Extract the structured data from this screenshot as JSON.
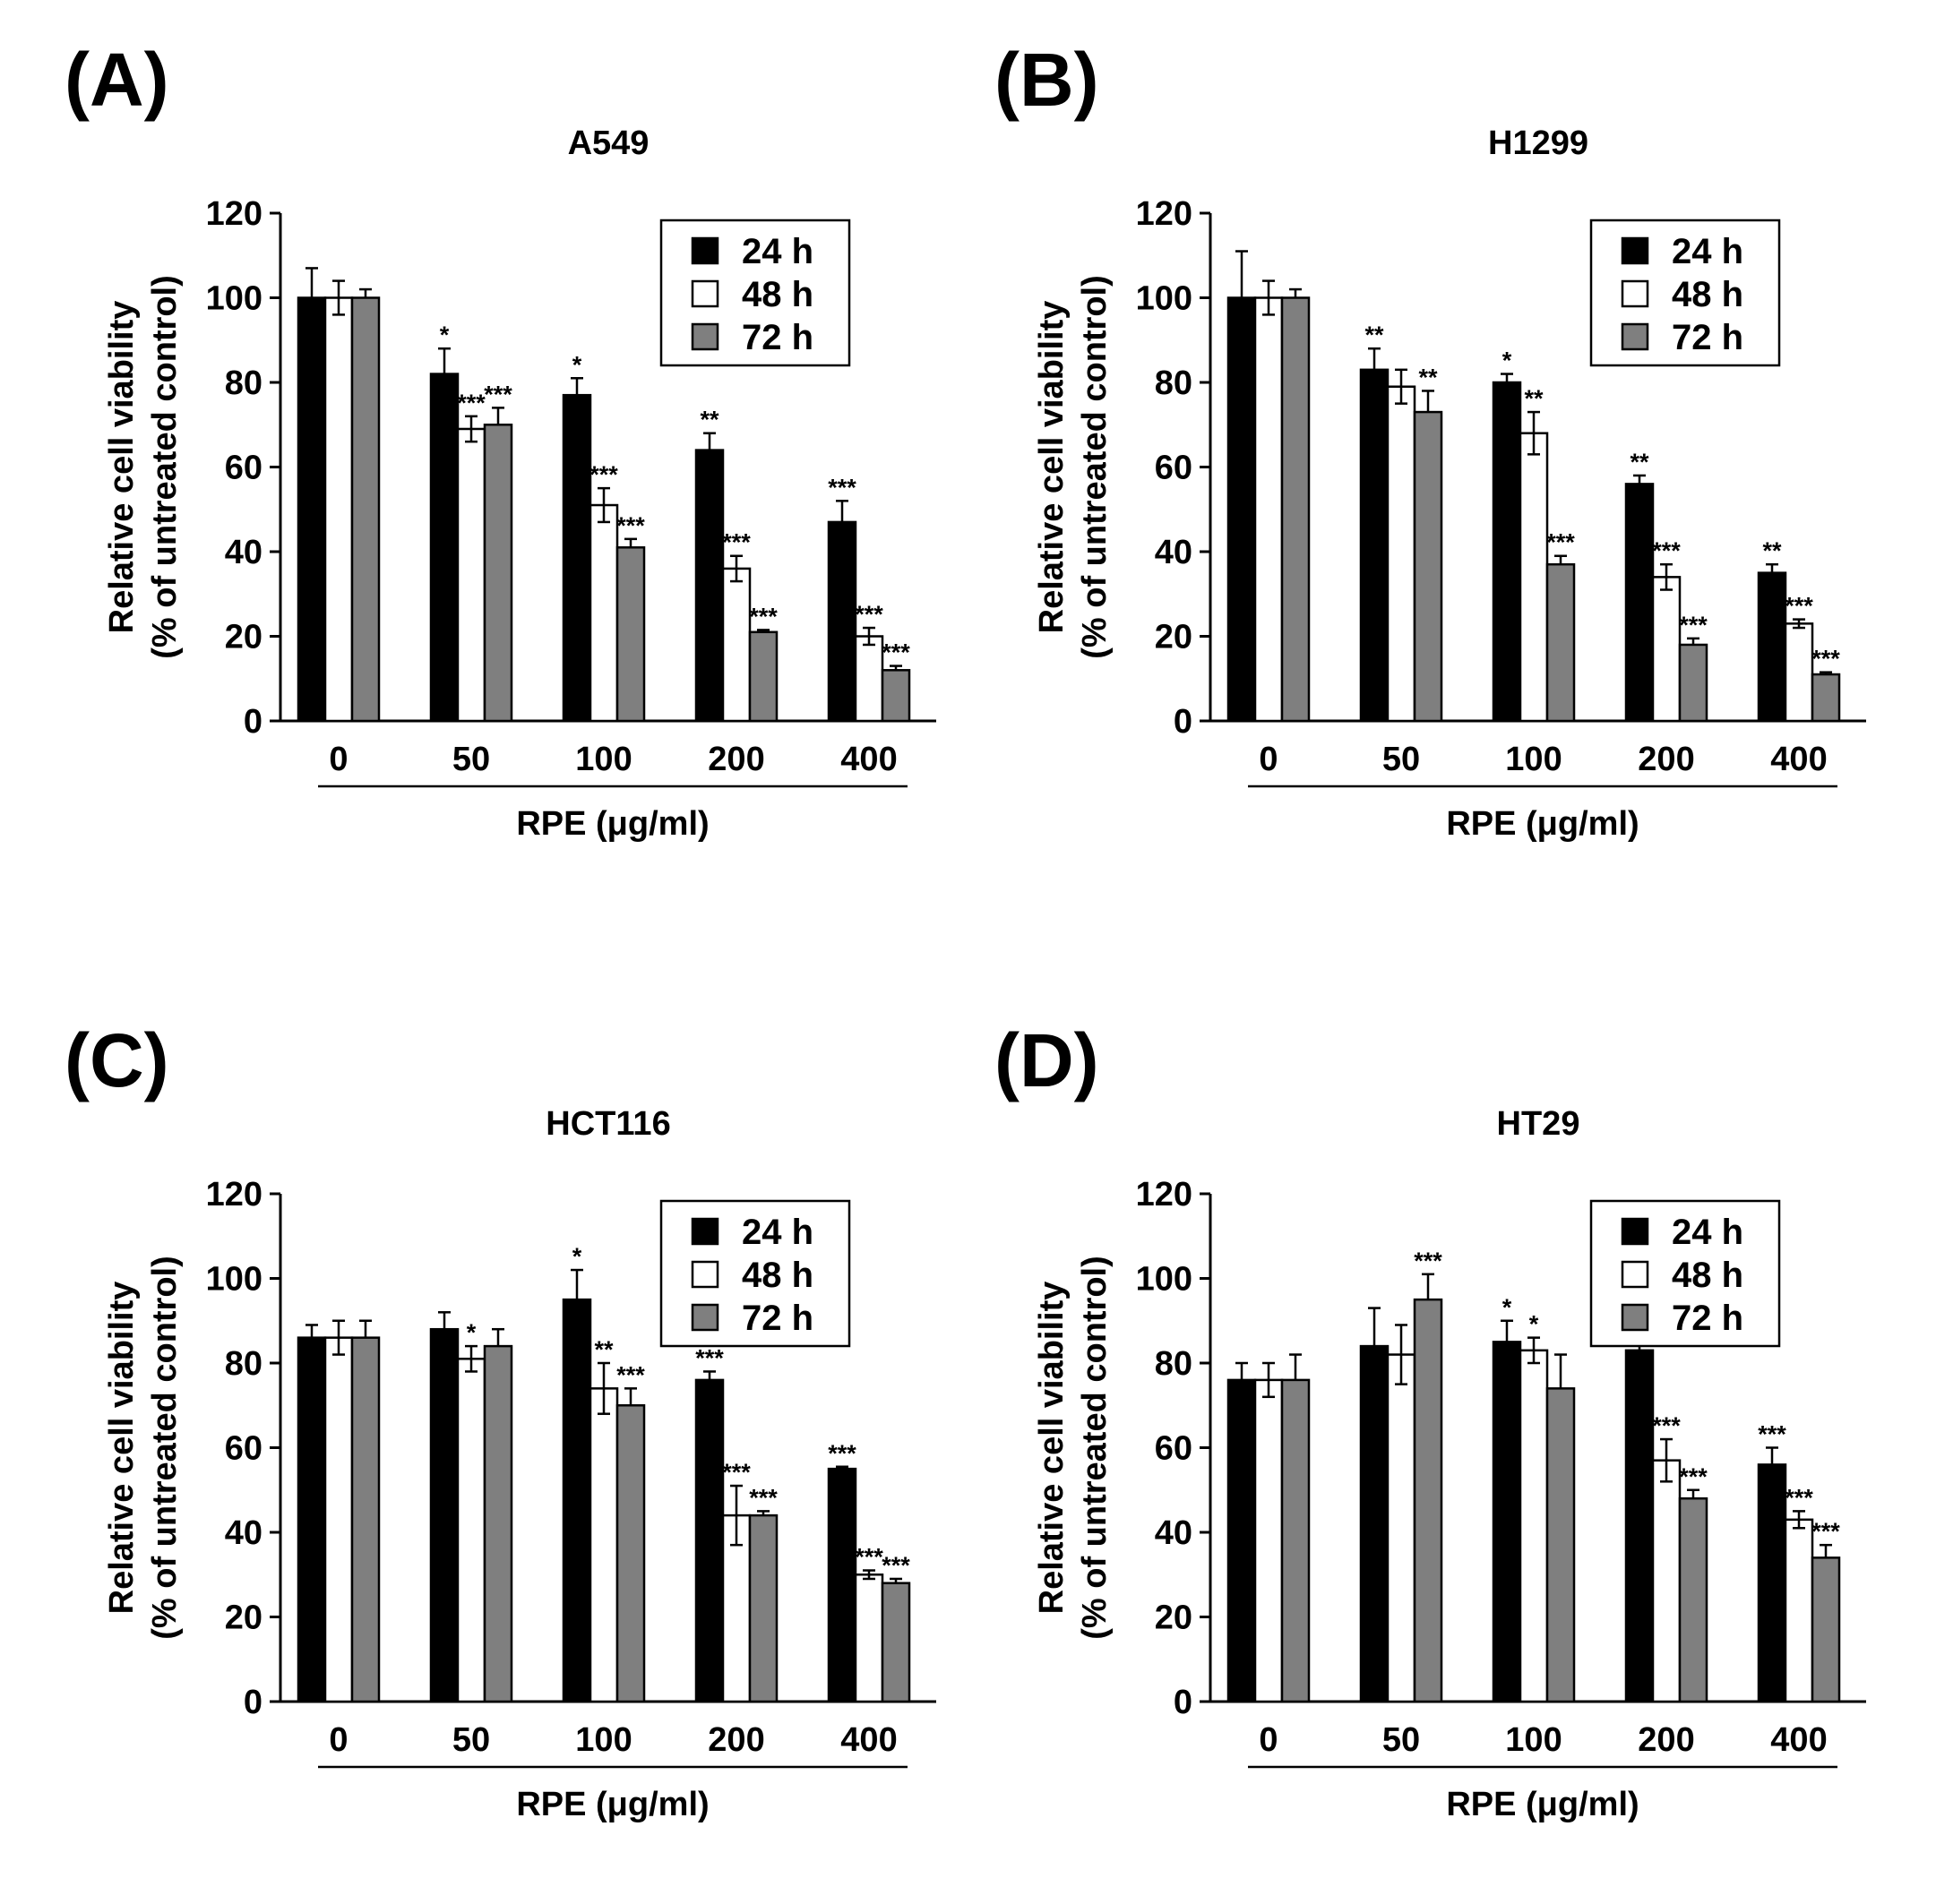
{
  "figure": {
    "x_unit_label": "RPE (μg/ml)",
    "y_axis_label_line1": "Relative cell viability",
    "y_axis_label_line2": "(% of untreated control)"
  },
  "colors": {
    "24 h": "#000000",
    "48 h": "#ffffff",
    "72 h": "#7f7f7f",
    "stroke": "#000000"
  },
  "chart_data": [
    {
      "panel": "(A)",
      "title": "A549",
      "type": "bar",
      "xlabel": "RPE (μg/ml)",
      "ylabel": "Relative cell viability (% of untreated control)",
      "ylim": [
        0,
        120
      ],
      "yticks": [
        0,
        20,
        40,
        60,
        80,
        100,
        120
      ],
      "categories": [
        "0",
        "50",
        "100",
        "200",
        "400"
      ],
      "legend": [
        "24 h",
        "48 h",
        "72 h"
      ],
      "legend_position": "top-right",
      "series": [
        {
          "name": "24 h",
          "values": [
            100,
            82,
            77,
            64,
            47
          ],
          "errors": [
            7,
            6,
            4,
            4,
            5
          ],
          "sig": [
            "",
            "*",
            "*",
            "**",
            "***"
          ]
        },
        {
          "name": "48 h",
          "values": [
            100,
            69,
            51,
            36,
            20
          ],
          "errors": [
            4,
            3,
            4,
            3,
            2
          ],
          "sig": [
            "",
            "***",
            "***",
            "***",
            "***"
          ]
        },
        {
          "name": "72 h",
          "values": [
            100,
            70,
            41,
            21,
            12
          ],
          "errors": [
            2,
            4,
            2,
            0.5,
            1
          ],
          "sig": [
            "",
            "***",
            "***",
            "***",
            "***"
          ]
        }
      ]
    },
    {
      "panel": "(B)",
      "title": "H1299",
      "type": "bar",
      "xlabel": "RPE (μg/ml)",
      "ylabel": "Relative cell viability (% of untreated control)",
      "ylim": [
        0,
        120
      ],
      "yticks": [
        0,
        20,
        40,
        60,
        80,
        100,
        120
      ],
      "categories": [
        "0",
        "50",
        "100",
        "200",
        "400"
      ],
      "legend": [
        "24 h",
        "48 h",
        "72 h"
      ],
      "legend_position": "top-right",
      "series": [
        {
          "name": "24 h",
          "values": [
            100,
            83,
            80,
            56,
            35
          ],
          "errors": [
            11,
            5,
            2,
            2,
            2
          ],
          "sig": [
            "",
            "**",
            "*",
            "**",
            "**"
          ]
        },
        {
          "name": "48 h",
          "values": [
            100,
            79,
            68,
            34,
            23
          ],
          "errors": [
            4,
            4,
            5,
            3,
            1
          ],
          "sig": [
            "",
            "",
            "**",
            "***",
            "***"
          ]
        },
        {
          "name": "72 h",
          "values": [
            100,
            73,
            37,
            18,
            11
          ],
          "errors": [
            2,
            5,
            2,
            1.5,
            0.5
          ],
          "sig": [
            "",
            "**",
            "***",
            "***",
            "***"
          ]
        }
      ]
    },
    {
      "panel": "(C)",
      "title": "HCT116",
      "type": "bar",
      "xlabel": "RPE (μg/ml)",
      "ylabel": "Relative cell viability (% of untreated control)",
      "ylim": [
        0,
        120
      ],
      "yticks": [
        0,
        20,
        40,
        60,
        80,
        100,
        120
      ],
      "categories": [
        "0",
        "50",
        "100",
        "200",
        "400"
      ],
      "legend": [
        "24 h",
        "48 h",
        "72 h"
      ],
      "legend_position": "top-right",
      "series": [
        {
          "name": "24 h",
          "values": [
            86,
            88,
            95,
            76,
            55
          ],
          "errors": [
            3,
            4,
            7,
            2,
            0.5
          ],
          "sig": [
            "",
            "",
            "*",
            "***",
            "***"
          ]
        },
        {
          "name": "48 h",
          "values": [
            86,
            81,
            74,
            44,
            30
          ],
          "errors": [
            4,
            3,
            6,
            7,
            1
          ],
          "sig": [
            "",
            "*",
            "**",
            "***",
            "***"
          ]
        },
        {
          "name": "72 h",
          "values": [
            86,
            84,
            70,
            44,
            28
          ],
          "errors": [
            4,
            4,
            4,
            1,
            1
          ],
          "sig": [
            "",
            "",
            "***",
            "***",
            "***"
          ]
        }
      ]
    },
    {
      "panel": "(D)",
      "title": "HT29",
      "type": "bar",
      "xlabel": "RPE (μg/ml)",
      "ylabel": "Relative cell viability (% of untreated control)",
      "ylim": [
        0,
        120
      ],
      "yticks": [
        0,
        20,
        40,
        60,
        80,
        100,
        120
      ],
      "categories": [
        "0",
        "50",
        "100",
        "200",
        "400"
      ],
      "legend": [
        "24 h",
        "48 h",
        "72 h"
      ],
      "legend_position": "top-right",
      "series": [
        {
          "name": "24 h",
          "values": [
            76,
            84,
            85,
            83,
            56
          ],
          "errors": [
            4,
            9,
            5,
            8,
            4
          ],
          "sig": [
            "",
            "",
            "*",
            "",
            "***"
          ]
        },
        {
          "name": "48 h",
          "values": [
            76,
            82,
            83,
            57,
            43
          ],
          "errors": [
            4,
            7,
            3,
            5,
            2
          ],
          "sig": [
            "",
            "",
            "*",
            "***",
            "***"
          ]
        },
        {
          "name": "72 h",
          "values": [
            76,
            95,
            74,
            48,
            34
          ],
          "errors": [
            6,
            6,
            8,
            2,
            3
          ],
          "sig": [
            "",
            "***",
            "",
            "***",
            "***"
          ]
        }
      ]
    }
  ]
}
